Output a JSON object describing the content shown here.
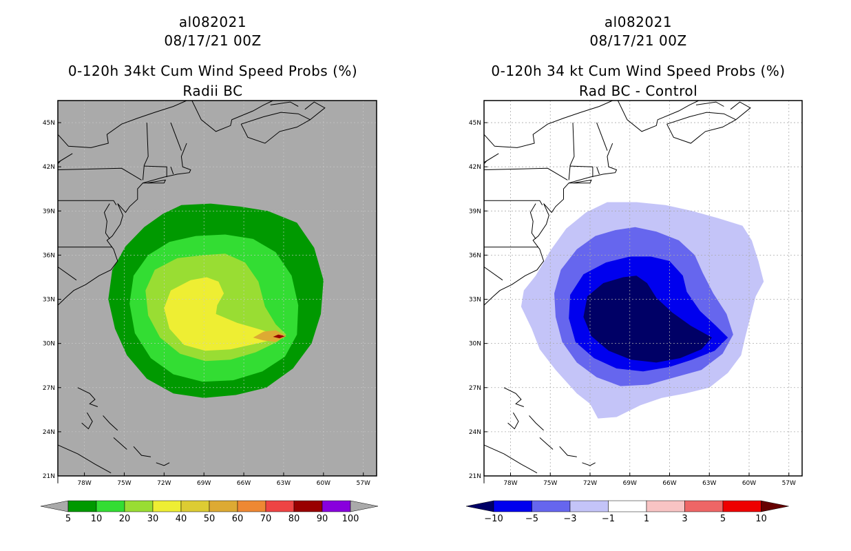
{
  "chart_data": [
    {
      "type": "heatmap",
      "storm_id": "al082021",
      "datetime": "08/17/21 00Z",
      "title": "0-120h 34kt Cum Wind Speed Probs (%)",
      "subtitle": "Radii BC",
      "lon_ticks": [
        "78W",
        "75W",
        "72W",
        "69W",
        "66W",
        "63W",
        "60W",
        "57W"
      ],
      "lat_ticks": [
        "45N",
        "42N",
        "39N",
        "36N",
        "33N",
        "30N",
        "27N",
        "24N",
        "21N"
      ],
      "lon_range": [
        -80,
        -56
      ],
      "lat_range": [
        21,
        46.5
      ],
      "colorbar": {
        "labels": [
          "5",
          "10",
          "20",
          "30",
          "40",
          "50",
          "60",
          "70",
          "80",
          "90",
          "100"
        ],
        "colors": [
          "#009900",
          "#33dd33",
          "#99dd33",
          "#eeee33",
          "#ddcc33",
          "#ddaa33",
          "#ee8833",
          "#ee4444",
          "#990000",
          "#8800dd"
        ],
        "under_color": "#aaaaaa",
        "over_color": "#aaaaaa"
      },
      "background_color": "#aaaaaa",
      "contours": [
        {
          "level": 5,
          "color": "#009900"
        },
        {
          "level": 10,
          "color": "#33dd33"
        },
        {
          "level": 20,
          "color": "#99dd33"
        },
        {
          "level": 30,
          "color": "#eeee33"
        },
        {
          "level": 60,
          "color": "#ddaa33"
        },
        {
          "level": 80,
          "color": "#990000"
        }
      ]
    },
    {
      "type": "heatmap",
      "storm_id": "al082021",
      "datetime": "08/17/21 00Z",
      "title": "0-120h 34 kt Cum Wind Speed Probs (%)",
      "subtitle": "Rad BC - Control",
      "lon_ticks": [
        "78W",
        "75W",
        "72W",
        "69W",
        "66W",
        "63W",
        "60W",
        "57W"
      ],
      "lat_ticks": [
        "45N",
        "42N",
        "39N",
        "36N",
        "33N",
        "30N",
        "27N",
        "24N",
        "21N"
      ],
      "lon_range": [
        -80,
        -56
      ],
      "lat_range": [
        21,
        46.5
      ],
      "colorbar": {
        "labels": [
          "-10",
          "-5",
          "-3",
          "-1",
          "1",
          "3",
          "5",
          "10"
        ],
        "colors": [
          "#0000ee",
          "#6666ee",
          "#c4c4f8",
          "#ffffff",
          "#f8c4c4",
          "#ee6666",
          "#ee0000"
        ],
        "under_color": "#000066",
        "over_color": "#660000"
      },
      "background_color": "#ffffff",
      "contours": [
        {
          "level": -1,
          "color": "#c4c4f8"
        },
        {
          "level": -3,
          "color": "#6666ee"
        },
        {
          "level": -5,
          "color": "#0000ee"
        },
        {
          "level": -10,
          "color": "#000066"
        }
      ]
    }
  ]
}
